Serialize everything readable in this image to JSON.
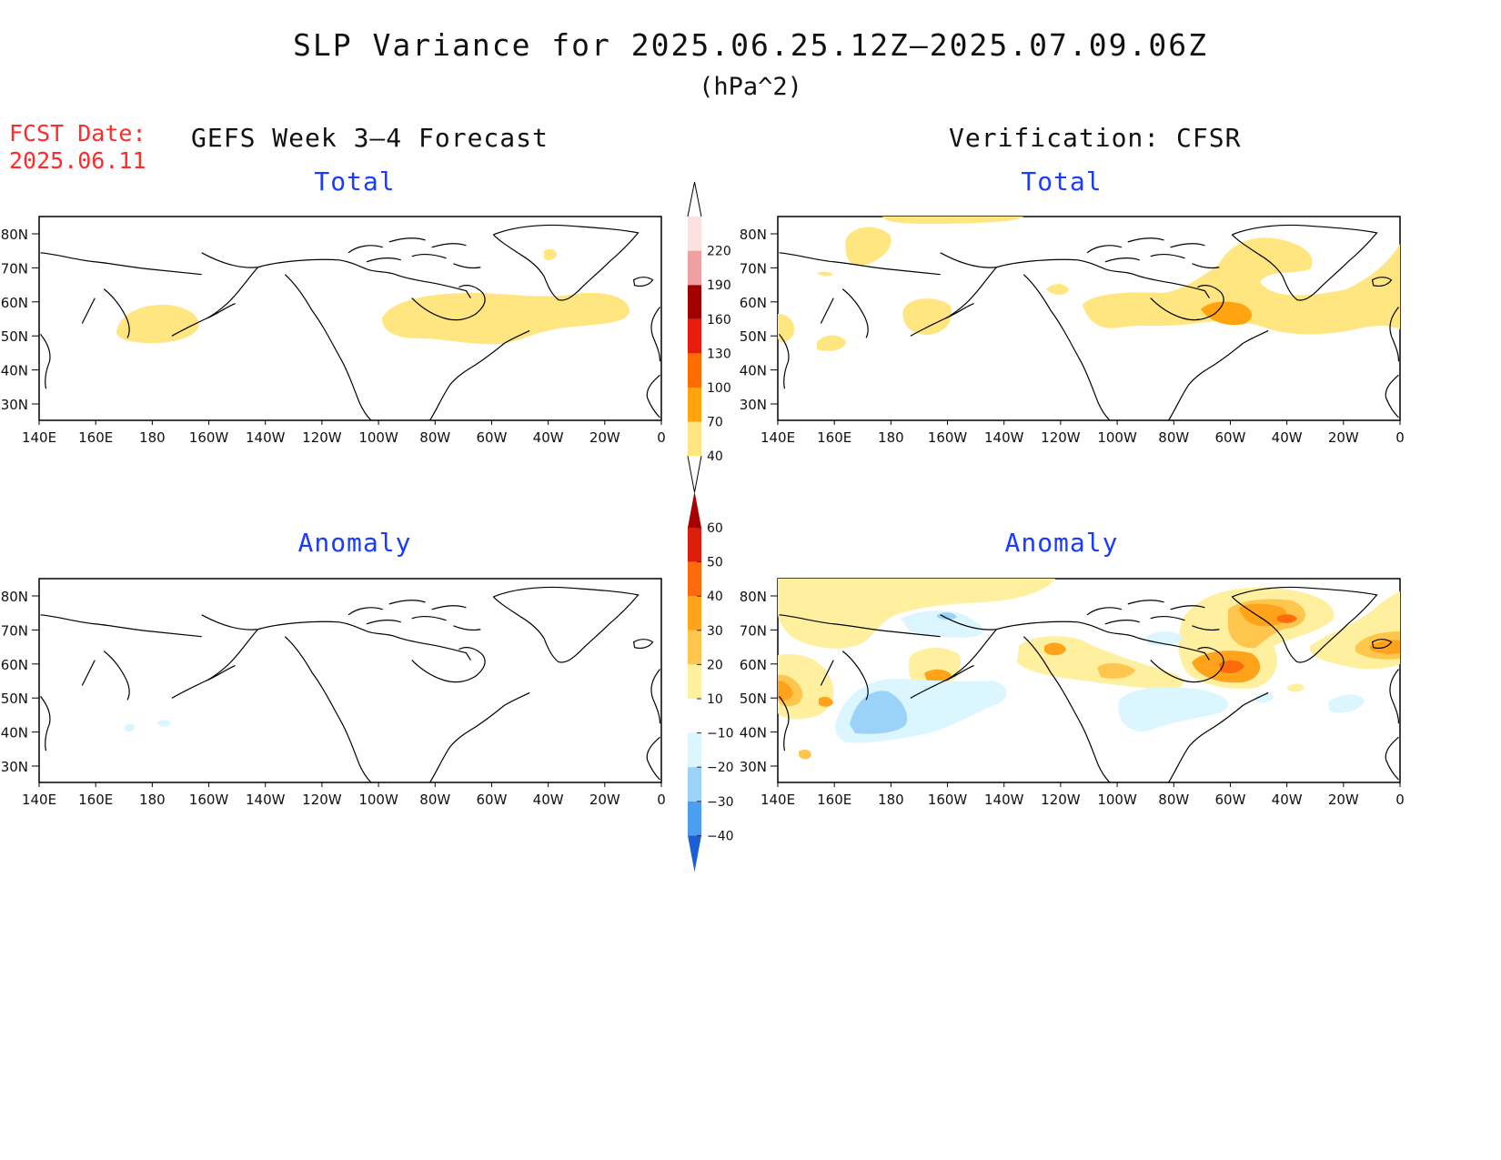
{
  "title": "SLP Variance for 2025.06.25.12Z–2025.07.09.06Z",
  "units": "(hPa^2)",
  "fcst_label": "FCST Date:",
  "fcst_date": "2025.06.11",
  "left_header": "GEFS Week 3–4 Forecast",
  "right_header": "Verification: CFSR",
  "panels": [
    {
      "id": "forecast-total",
      "subtitle": "Total"
    },
    {
      "id": "verif-total",
      "subtitle": "Total"
    },
    {
      "id": "forecast-anomaly",
      "subtitle": "Anomaly"
    },
    {
      "id": "verif-anomaly",
      "subtitle": "Anomaly"
    }
  ],
  "lat_labels": [
    "80N",
    "70N",
    "60N",
    "50N",
    "40N",
    "30N"
  ],
  "lon_labels": [
    "140E",
    "160E",
    "180",
    "160W",
    "140W",
    "120W",
    "100W",
    "80W",
    "60W",
    "40W",
    "20W",
    "0"
  ],
  "colorbars": {
    "total": {
      "labels": [
        "40",
        "70",
        "100",
        "130",
        "160",
        "190",
        "220"
      ],
      "colors": [
        "#ffe680",
        "#ffa30f",
        "#ff6d00",
        "#e81c0c",
        "#a30000",
        "#f0a0a0",
        "#fde0e0"
      ]
    },
    "anomaly": {
      "labels": [
        "60",
        "50",
        "40",
        "30",
        "20",
        "10",
        "−10",
        "−20",
        "−30",
        "−40"
      ],
      "colors": [
        "#a80000",
        "#dc1e0b",
        "#ff6a0a",
        "#ffa31a",
        "#ffc64d",
        "#fff0a0",
        "#ffffff",
        "#dcf6ff",
        "#9ad2f8",
        "#4c9ef0",
        "#1b5fd6"
      ]
    }
  },
  "colors": {
    "fcst": "#ff2a2a",
    "subtitle": "#1a3cff",
    "total_40_70": "#ffe680",
    "total_70_100": "#ffa30f",
    "anom_10_20": "#fff0a0",
    "anom_20_30": "#ffc64d",
    "anom_30_40": "#ffa31a",
    "anom_neg_10_20": "#dcf6ff",
    "anom_neg_20_30": "#9ad2f8"
  }
}
